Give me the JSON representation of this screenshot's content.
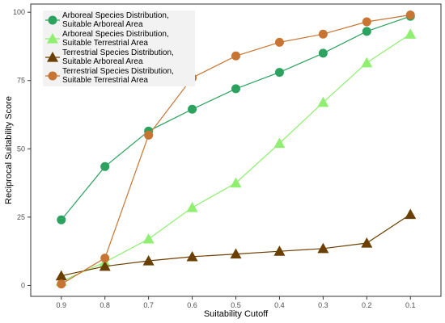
{
  "chart_data": {
    "type": "line",
    "xlabel": "Suitability Cutoff",
    "ylabel": "Reciprocal Suitability Score",
    "categories": [
      "0.9",
      "0.8",
      "0.7",
      "0.6",
      "0.5",
      "0.4",
      "0.3",
      "0.2",
      "0.1"
    ],
    "ylim": [
      -4,
      103
    ],
    "yticks": [
      0,
      25,
      50,
      75,
      100
    ],
    "grid": false,
    "legend_position": "top-left",
    "series": [
      {
        "name": "Arboreal Species Distribution, Suitable Arboreal Area",
        "label_lines": [
          "Arboreal Species Distribution,",
          "Suitable Arboreal Area"
        ],
        "color": "#2ca25f",
        "marker": "circle",
        "values": [
          24,
          43.5,
          56.5,
          64.5,
          72,
          78,
          85,
          93,
          98.5
        ]
      },
      {
        "name": "Arboreal Species Distribution, Suitable Terrestrial Area",
        "label_lines": [
          "Arboreal Species Distribution,",
          "Suitable Terrestrial Area"
        ],
        "color": "#90ee70",
        "marker": "triangle",
        "values": [
          1.5,
          8.5,
          17,
          28.5,
          37.5,
          52,
          67,
          81.5,
          92
        ]
      },
      {
        "name": "Terrestrial Species Distribution, Suitable Arboreal Area",
        "label_lines": [
          "Terrestrial Species Distribution,",
          "Suitable Arboreal Area"
        ],
        "color": "#6b3f00",
        "marker": "triangle",
        "values": [
          3.5,
          7,
          9,
          10.5,
          11.5,
          12.5,
          13.5,
          15.5,
          26
        ]
      },
      {
        "name": "Terrestrial Species Distribution, Suitable Terrestrial Area",
        "label_lines": [
          "Terrestrial Species Distribution,",
          "Suitable Terrestrial Area"
        ],
        "color": "#c87533",
        "marker": "circle",
        "values": [
          0.5,
          10,
          55,
          76,
          84,
          89,
          92,
          96.5,
          99
        ]
      }
    ]
  }
}
